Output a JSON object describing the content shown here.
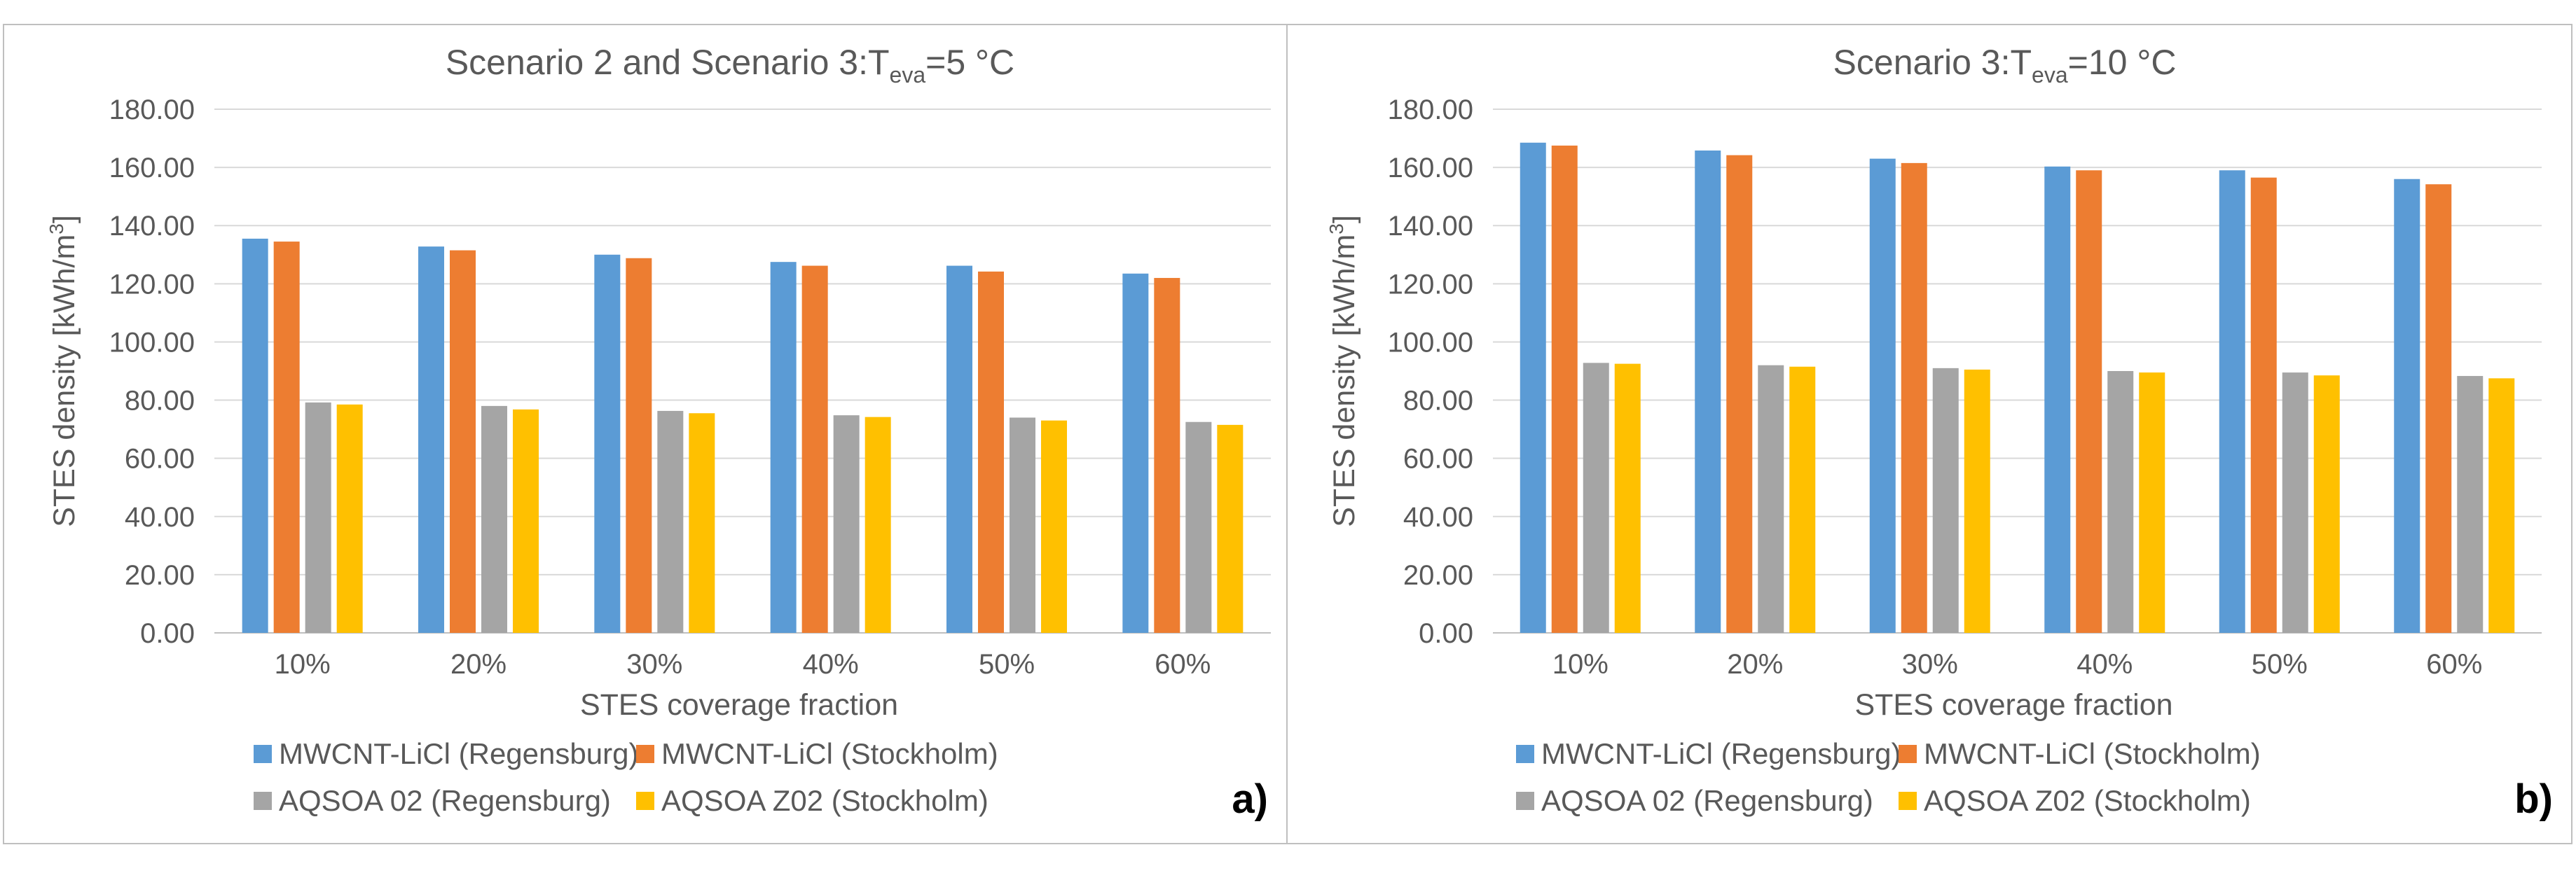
{
  "colors": {
    "MWCNT-LiCl (Regensburg)": "#5b9bd5",
    "MWCNT-LiCl (Stockholm)": "#ed7d31",
    "AQSOA 02 (Regensburg)": "#a5a5a5",
    "AQSOA Z02 (Stockholm)": "#ffc000"
  },
  "chart_data": [
    {
      "type": "bar",
      "panel_label": "a)",
      "title": {
        "prefix": "Scenario 2 and Scenario 3:T",
        "subscript": "eva",
        "suffix": "=5 °C"
      },
      "xlabel": "STES coverage fraction",
      "ylabel": {
        "main": "STES density [kWh/m",
        "superscript": "3",
        "suffix": "]"
      },
      "ylim": [
        0,
        180
      ],
      "yticks": [
        "0.00",
        "20.00",
        "40.00",
        "60.00",
        "80.00",
        "100.00",
        "120.00",
        "140.00",
        "160.00",
        "180.00"
      ],
      "grid": true,
      "legend_position": "bottom",
      "categories": [
        "10%",
        "20%",
        "30%",
        "40%",
        "50%",
        "60%"
      ],
      "series": [
        {
          "name": "MWCNT-LiCl (Regensburg)",
          "values": [
            135.5,
            132.8,
            130.0,
            127.5,
            126.2,
            123.5
          ]
        },
        {
          "name": "MWCNT-LiCl (Stockholm)",
          "values": [
            134.5,
            131.5,
            128.8,
            126.2,
            124.2,
            122.0
          ]
        },
        {
          "name": "AQSOA 02 (Regensburg)",
          "values": [
            79.2,
            78.0,
            76.3,
            74.8,
            74.0,
            72.5
          ]
        },
        {
          "name": "AQSOA Z02 (Stockholm)",
          "values": [
            78.5,
            76.8,
            75.5,
            74.2,
            73.0,
            71.5
          ]
        }
      ]
    },
    {
      "type": "bar",
      "panel_label": "b)",
      "title": {
        "prefix": "Scenario 3:T",
        "subscript": "eva",
        "suffix": "=10 °C"
      },
      "xlabel": "STES coverage fraction",
      "ylabel": {
        "main": "STES density [kWh/m",
        "superscript": "3",
        "suffix": "]"
      },
      "ylim": [
        0,
        180
      ],
      "yticks": [
        "0.00",
        "20.00",
        "40.00",
        "60.00",
        "80.00",
        "100.00",
        "120.00",
        "140.00",
        "160.00",
        "180.00"
      ],
      "grid": true,
      "legend_position": "bottom",
      "categories": [
        "10%",
        "20%",
        "30%",
        "40%",
        "50%",
        "60%"
      ],
      "series": [
        {
          "name": "MWCNT-LiCl (Regensburg)",
          "values": [
            168.5,
            165.8,
            163.0,
            160.3,
            159.0,
            156.0
          ]
        },
        {
          "name": "MWCNT-LiCl (Stockholm)",
          "values": [
            167.5,
            164.2,
            161.5,
            159.0,
            156.5,
            154.2
          ]
        },
        {
          "name": "AQSOA 02 (Regensburg)",
          "values": [
            92.8,
            92.0,
            91.0,
            90.0,
            89.5,
            88.3
          ]
        },
        {
          "name": "AQSOA Z02 (Stockholm)",
          "values": [
            92.5,
            91.5,
            90.5,
            89.5,
            88.5,
            87.5
          ]
        }
      ]
    }
  ]
}
